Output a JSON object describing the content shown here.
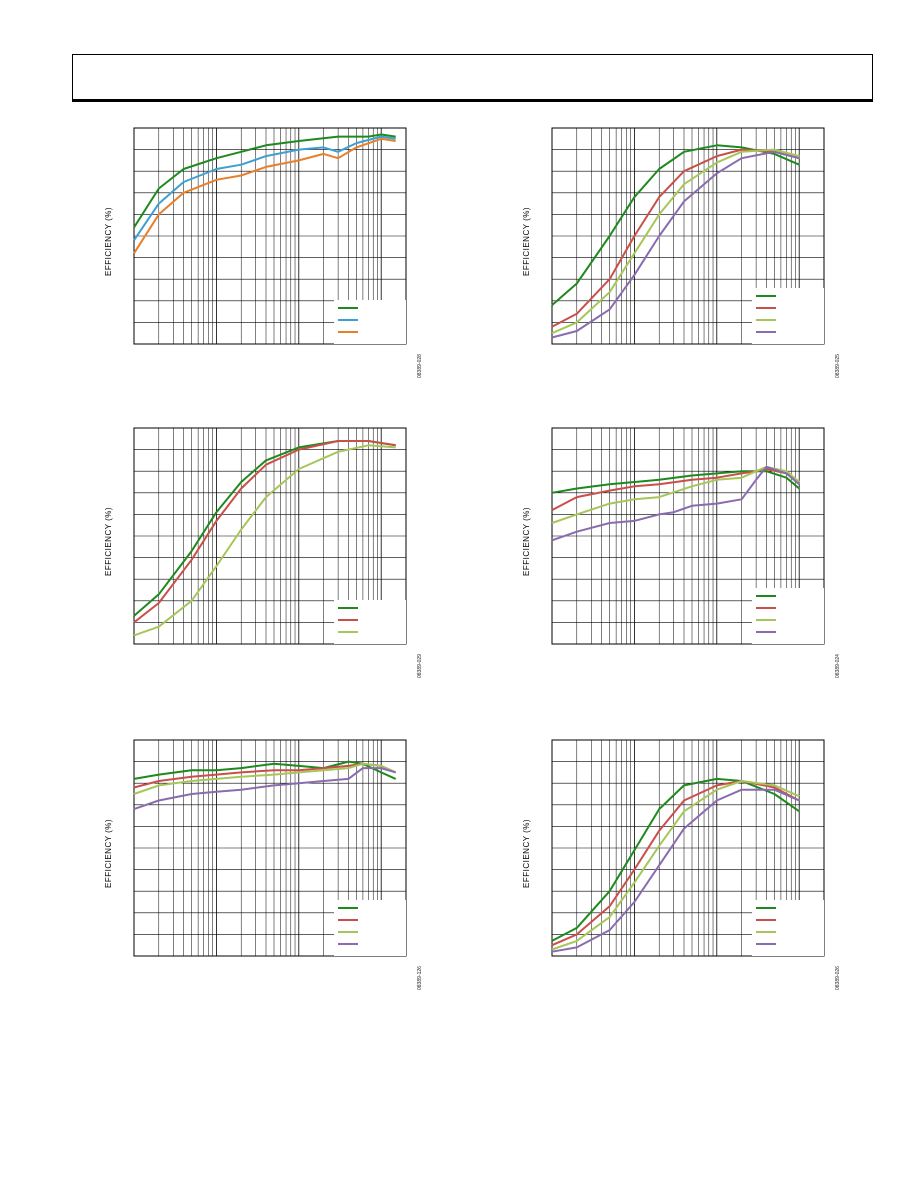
{
  "page": {
    "header_title": ""
  },
  "chart_data": [
    {
      "id": "c1",
      "type": "line",
      "ylabel": "EFFICIENCY (%)",
      "xscale": "log",
      "xlim": [
        1,
        2000
      ],
      "ylim": [
        0,
        100
      ],
      "figure_code": "08389-028",
      "legend_position": "bottom-right",
      "grid": true,
      "series": [
        {
          "color": "#1e8a1e",
          "points": [
            [
              1,
              54
            ],
            [
              2,
              72
            ],
            [
              4,
              81
            ],
            [
              10,
              86
            ],
            [
              20,
              89
            ],
            [
              40,
              92
            ],
            [
              100,
              94
            ],
            [
              300,
              96
            ],
            [
              700,
              96
            ],
            [
              1000,
              97
            ],
            [
              1500,
              96
            ]
          ]
        },
        {
          "color": "#3f9fd0",
          "points": [
            [
              1,
              48
            ],
            [
              2,
              65
            ],
            [
              4,
              75
            ],
            [
              10,
              81
            ],
            [
              20,
              83
            ],
            [
              40,
              87
            ],
            [
              100,
              90
            ],
            [
              200,
              91
            ],
            [
              300,
              89
            ],
            [
              500,
              93
            ],
            [
              1000,
              96
            ],
            [
              1500,
              95
            ]
          ]
        },
        {
          "color": "#e87f2a",
          "points": [
            [
              1,
              42
            ],
            [
              2,
              60
            ],
            [
              4,
              70
            ],
            [
              10,
              76
            ],
            [
              20,
              78
            ],
            [
              40,
              82
            ],
            [
              100,
              85
            ],
            [
              200,
              88
            ],
            [
              300,
              86
            ],
            [
              500,
              91
            ],
            [
              1000,
              95
            ],
            [
              1500,
              94
            ]
          ]
        }
      ]
    },
    {
      "id": "c2",
      "type": "line",
      "ylabel": "EFFICIENCY (%)",
      "xscale": "log",
      "xlim": [
        1,
        2000
      ],
      "ylim": [
        0,
        100
      ],
      "figure_code": "08389-025",
      "legend_position": "bottom-right",
      "grid": true,
      "series": [
        {
          "color": "#1e8a1e",
          "points": [
            [
              1,
              18
            ],
            [
              2,
              28
            ],
            [
              5,
              50
            ],
            [
              10,
              68
            ],
            [
              20,
              81
            ],
            [
              40,
              89
            ],
            [
              100,
              92
            ],
            [
              200,
              91
            ],
            [
              500,
              88
            ],
            [
              1000,
              83
            ]
          ]
        },
        {
          "color": "#c9504a",
          "points": [
            [
              1,
              8
            ],
            [
              2,
              14
            ],
            [
              5,
              30
            ],
            [
              10,
              50
            ],
            [
              20,
              68
            ],
            [
              40,
              80
            ],
            [
              100,
              87
            ],
            [
              200,
              90
            ],
            [
              500,
              89
            ],
            [
              1000,
              86
            ]
          ]
        },
        {
          "color": "#a6c659",
          "points": [
            [
              1,
              5
            ],
            [
              2,
              10
            ],
            [
              5,
              24
            ],
            [
              10,
              42
            ],
            [
              20,
              60
            ],
            [
              40,
              74
            ],
            [
              100,
              84
            ],
            [
              200,
              89
            ],
            [
              500,
              90
            ],
            [
              1000,
              87
            ]
          ]
        },
        {
          "color": "#8a6bb0",
          "points": [
            [
              1,
              3
            ],
            [
              2,
              6
            ],
            [
              5,
              16
            ],
            [
              10,
              32
            ],
            [
              20,
              50
            ],
            [
              40,
              66
            ],
            [
              100,
              79
            ],
            [
              200,
              86
            ],
            [
              500,
              89
            ],
            [
              1000,
              86
            ]
          ]
        }
      ]
    },
    {
      "id": "c3",
      "type": "line",
      "ylabel": "EFFICIENCY (%)",
      "xscale": "log",
      "xlim": [
        1,
        2000
      ],
      "ylim": [
        0,
        100
      ],
      "figure_code": "08389-029",
      "legend_position": "bottom-right",
      "grid": true,
      "series": [
        {
          "color": "#1e8a1e",
          "points": [
            [
              1,
              13
            ],
            [
              2,
              23
            ],
            [
              5,
              43
            ],
            [
              10,
              61
            ],
            [
              20,
              75
            ],
            [
              40,
              85
            ],
            [
              100,
              91
            ],
            [
              300,
              94
            ],
            [
              700,
              94
            ],
            [
              1500,
              92
            ]
          ]
        },
        {
          "color": "#c9504a",
          "points": [
            [
              1,
              10
            ],
            [
              2,
              19
            ],
            [
              5,
              39
            ],
            [
              10,
              57
            ],
            [
              20,
              72
            ],
            [
              40,
              83
            ],
            [
              100,
              90
            ],
            [
              300,
              94
            ],
            [
              700,
              94
            ],
            [
              1500,
              92
            ]
          ]
        },
        {
          "color": "#a6c659",
          "points": [
            [
              1,
              4
            ],
            [
              2,
              8
            ],
            [
              5,
              20
            ],
            [
              10,
              36
            ],
            [
              20,
              53
            ],
            [
              40,
              68
            ],
            [
              100,
              81
            ],
            [
              300,
              89
            ],
            [
              700,
              92
            ],
            [
              1500,
              91
            ]
          ]
        }
      ]
    },
    {
      "id": "c4",
      "type": "line",
      "ylabel": "EFFICIENCY (%)",
      "xscale": "log",
      "xlim": [
        1,
        2000
      ],
      "ylim": [
        0,
        100
      ],
      "figure_code": "08389-024",
      "legend_position": "bottom-right",
      "grid": true,
      "series": [
        {
          "color": "#1e8a1e",
          "points": [
            [
              1,
              70
            ],
            [
              2,
              72
            ],
            [
              5,
              74
            ],
            [
              10,
              75
            ],
            [
              20,
              76
            ],
            [
              50,
              78
            ],
            [
              100,
              79
            ],
            [
              200,
              80
            ],
            [
              300,
              80
            ],
            [
              400,
              80
            ],
            [
              700,
              77
            ],
            [
              1000,
              72
            ]
          ]
        },
        {
          "color": "#c9504a",
          "points": [
            [
              1,
              62
            ],
            [
              2,
              68
            ],
            [
              5,
              71
            ],
            [
              10,
              73
            ],
            [
              20,
              74
            ],
            [
              50,
              76
            ],
            [
              100,
              77
            ],
            [
              200,
              79
            ],
            [
              300,
              80
            ],
            [
              400,
              81
            ],
            [
              700,
              79
            ],
            [
              1000,
              75
            ]
          ]
        },
        {
          "color": "#a6c659",
          "points": [
            [
              1,
              56
            ],
            [
              2,
              60
            ],
            [
              5,
              65
            ],
            [
              10,
              67
            ],
            [
              20,
              68
            ],
            [
              50,
              73
            ],
            [
              100,
              76
            ],
            [
              200,
              77
            ],
            [
              300,
              80
            ],
            [
              400,
              82
            ],
            [
              700,
              80
            ],
            [
              1000,
              75
            ]
          ]
        },
        {
          "color": "#8a6bb0",
          "points": [
            [
              1,
              48
            ],
            [
              2,
              52
            ],
            [
              5,
              56
            ],
            [
              10,
              57
            ],
            [
              20,
              60
            ],
            [
              30,
              61
            ],
            [
              50,
              64
            ],
            [
              100,
              65
            ],
            [
              200,
              67
            ],
            [
              300,
              76
            ],
            [
              400,
              82
            ],
            [
              700,
              79
            ],
            [
              1000,
              74
            ]
          ]
        }
      ]
    },
    {
      "id": "c5",
      "type": "line",
      "ylabel": "EFFICIENCY (%)",
      "xscale": "log",
      "xlim": [
        1,
        2000
      ],
      "ylim": [
        0,
        100
      ],
      "figure_code": "08389-126",
      "legend_position": "bottom-right",
      "grid": true,
      "series": [
        {
          "color": "#1e8a1e",
          "points": [
            [
              1,
              82
            ],
            [
              2,
              84
            ],
            [
              5,
              86
            ],
            [
              10,
              86
            ],
            [
              20,
              87
            ],
            [
              50,
              89
            ],
            [
              100,
              88
            ],
            [
              200,
              87
            ],
            [
              400,
              90
            ],
            [
              600,
              89
            ],
            [
              1000,
              85
            ],
            [
              1500,
              82
            ]
          ]
        },
        {
          "color": "#c9504a",
          "points": [
            [
              1,
              78
            ],
            [
              2,
              81
            ],
            [
              5,
              83
            ],
            [
              10,
              84
            ],
            [
              20,
              85
            ],
            [
              50,
              86
            ],
            [
              100,
              86
            ],
            [
              200,
              87
            ],
            [
              400,
              88
            ],
            [
              600,
              89
            ],
            [
              1000,
              88
            ],
            [
              1500,
              85
            ]
          ]
        },
        {
          "color": "#a6c659",
          "points": [
            [
              1,
              75
            ],
            [
              2,
              79
            ],
            [
              5,
              81
            ],
            [
              10,
              82
            ],
            [
              20,
              83
            ],
            [
              50,
              84
            ],
            [
              100,
              85
            ],
            [
              200,
              86
            ],
            [
              400,
              87
            ],
            [
              600,
              89
            ],
            [
              1000,
              88
            ],
            [
              1500,
              85
            ]
          ]
        },
        {
          "color": "#8a6bb0",
          "points": [
            [
              1,
              68
            ],
            [
              2,
              72
            ],
            [
              5,
              75
            ],
            [
              10,
              76
            ],
            [
              20,
              77
            ],
            [
              50,
              79
            ],
            [
              100,
              80
            ],
            [
              200,
              81
            ],
            [
              400,
              82
            ],
            [
              600,
              87
            ],
            [
              1000,
              87
            ],
            [
              1500,
              85
            ]
          ]
        }
      ]
    },
    {
      "id": "c6",
      "type": "line",
      "ylabel": "EFFICIENCY (%)",
      "xscale": "log",
      "xlim": [
        1,
        2000
      ],
      "ylim": [
        0,
        100
      ],
      "figure_code": "08389-026",
      "legend_position": "bottom-right",
      "grid": true,
      "series": [
        {
          "color": "#1e8a1e",
          "points": [
            [
              1,
              7
            ],
            [
              2,
              13
            ],
            [
              5,
              30
            ],
            [
              10,
              49
            ],
            [
              20,
              68
            ],
            [
              40,
              79
            ],
            [
              100,
              82
            ],
            [
              200,
              81
            ],
            [
              500,
              75
            ],
            [
              1000,
              67
            ]
          ]
        },
        {
          "color": "#c9504a",
          "points": [
            [
              1,
              5
            ],
            [
              2,
              10
            ],
            [
              5,
              23
            ],
            [
              10,
              40
            ],
            [
              20,
              58
            ],
            [
              40,
              72
            ],
            [
              100,
              79
            ],
            [
              200,
              81
            ],
            [
              500,
              78
            ],
            [
              1000,
              72
            ]
          ]
        },
        {
          "color": "#a6c659",
          "points": [
            [
              1,
              3
            ],
            [
              2,
              7
            ],
            [
              5,
              18
            ],
            [
              10,
              34
            ],
            [
              20,
              51
            ],
            [
              40,
              67
            ],
            [
              100,
              77
            ],
            [
              200,
              81
            ],
            [
              500,
              79
            ],
            [
              1000,
              74
            ]
          ]
        },
        {
          "color": "#8a6bb0",
          "points": [
            [
              1,
              2
            ],
            [
              2,
              4
            ],
            [
              5,
              12
            ],
            [
              10,
              25
            ],
            [
              20,
              42
            ],
            [
              40,
              59
            ],
            [
              100,
              72
            ],
            [
              200,
              77
            ],
            [
              500,
              77
            ],
            [
              1000,
              72
            ]
          ]
        }
      ]
    }
  ]
}
